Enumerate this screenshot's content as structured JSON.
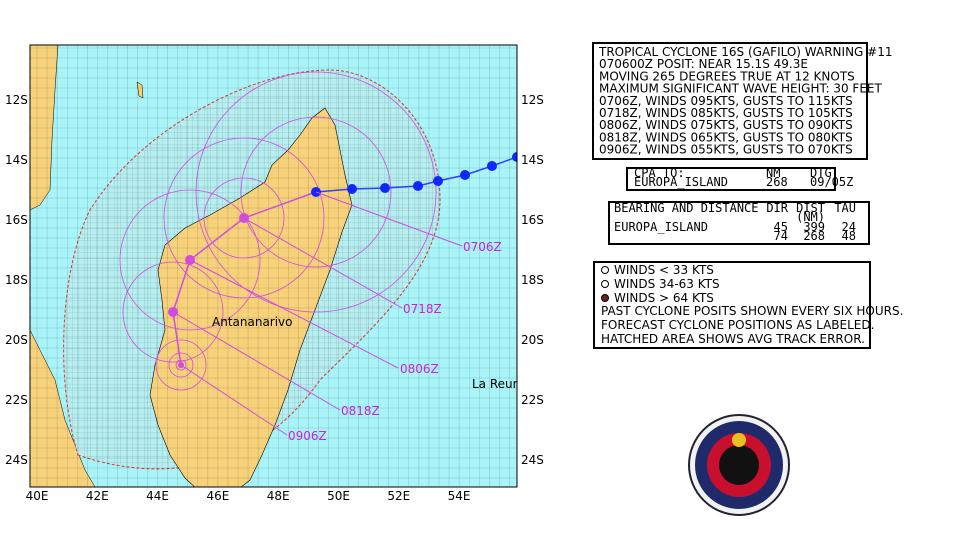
{
  "map": {
    "lat_labels": [
      "12S",
      "14S",
      "16S",
      "18S",
      "20S",
      "22S",
      "24S"
    ],
    "lon_labels": [
      "40E",
      "42E",
      "44E",
      "46E",
      "48E",
      "50E",
      "52E",
      "54E"
    ],
    "places": [
      "Antananarivo",
      "La Reur"
    ],
    "forecast_labels": [
      "0706Z",
      "0718Z",
      "0806Z",
      "0818Z",
      "0906Z"
    ]
  },
  "warning": {
    "lines": [
      "TROPICAL CYCLONE 16S (GAFILO) WARNING #11",
      "070600Z POSIT: NEAR 15.1S 49.3E",
      "MOVING 265 DEGREES TRUE AT 12 KNOTS",
      "MAXIMUM SIGNIFICANT WAVE HEIGHT: 30 FEET",
      "0706Z, WINDS 095KTS, GUSTS TO 115KTS",
      "0718Z, WINDS 085KTS, GUSTS TO 105KTS",
      "0806Z, WINDS 075KTS, GUSTS TO 090KTS",
      "0818Z, WINDS 065KTS, GUSTS TO 080KTS",
      "0906Z, WINDS 055KTS, GUSTS TO 070KTS"
    ]
  },
  "cpa": {
    "header": [
      "CPA TO:",
      "NM",
      "DTG"
    ],
    "row": [
      "EUROPA_ISLAND",
      "268",
      "09/05Z"
    ]
  },
  "bearing": {
    "header": [
      "BEARING AND DISTANCE",
      "DIR",
      "DIST",
      "TAU"
    ],
    "subheader": "(NM)",
    "rows": [
      [
        "EUROPA_ISLAND",
        "45",
        "399",
        "24"
      ],
      [
        "",
        "74",
        "268",
        "48"
      ]
    ]
  },
  "legend": {
    "items": [
      "WINDS < 33 KTS",
      "WINDS 34-63  KTS",
      "WINDS > 64 KTS"
    ],
    "notes": [
      "PAST CYCLONE POSITS SHOWN EVERY SIX HOURS.",
      "FORECAST CYCLONE POSITIONS AS LABELED.",
      "HATCHED AREA SHOWS AVG TRACK ERROR."
    ]
  }
}
